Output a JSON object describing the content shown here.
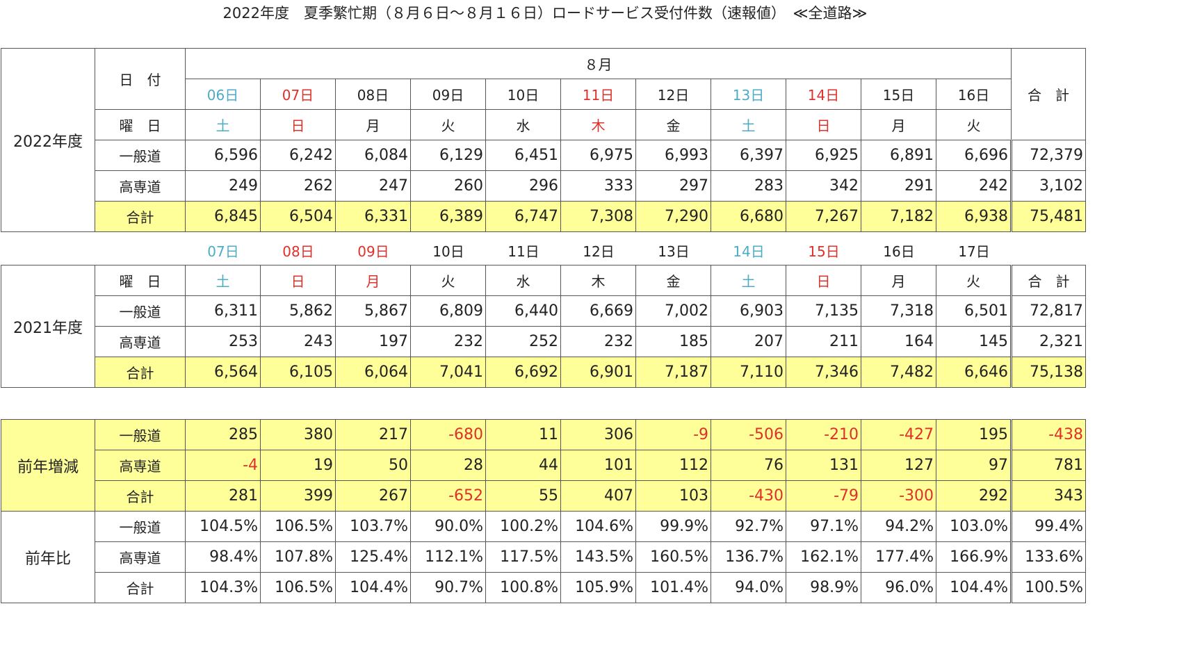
{
  "title": "2022年度　夏季繁忙期（８月６日～８月１６日）ロードサービス受付件数（速報値）　≪全道路≫",
  "labels": {
    "date": "日　付",
    "weekday": "曜　日",
    "general": "一般道",
    "express": "高専道",
    "total": "合計",
    "grand_total": "合　計",
    "month": "８月"
  },
  "y2022": {
    "year": "2022年度",
    "days": [
      {
        "date": "06日",
        "wd": "土",
        "color": "cyan"
      },
      {
        "date": "07日",
        "wd": "日",
        "color": "red"
      },
      {
        "date": "08日",
        "wd": "月",
        "color": ""
      },
      {
        "date": "09日",
        "wd": "火",
        "color": ""
      },
      {
        "date": "10日",
        "wd": "水",
        "color": ""
      },
      {
        "date": "11日",
        "wd": "木",
        "color": "red"
      },
      {
        "date": "12日",
        "wd": "金",
        "color": ""
      },
      {
        "date": "13日",
        "wd": "土",
        "color": "cyan"
      },
      {
        "date": "14日",
        "wd": "日",
        "color": "red"
      },
      {
        "date": "15日",
        "wd": "月",
        "color": ""
      },
      {
        "date": "16日",
        "wd": "火",
        "color": ""
      }
    ],
    "general": [
      "6,596",
      "6,242",
      "6,084",
      "6,129",
      "6,451",
      "6,975",
      "6,993",
      "6,397",
      "6,925",
      "6,891",
      "6,696",
      "72,379"
    ],
    "express": [
      "249",
      "262",
      "247",
      "260",
      "296",
      "333",
      "297",
      "283",
      "342",
      "291",
      "242",
      "3,102"
    ],
    "total": [
      "6,845",
      "6,504",
      "6,331",
      "6,389",
      "6,747",
      "7,308",
      "7,290",
      "6,680",
      "7,267",
      "7,182",
      "6,938",
      "75,481"
    ]
  },
  "y2021": {
    "year": "2021年度",
    "days": [
      {
        "date": "07日",
        "wd": "土",
        "color": "cyan",
        "wdcolor": "cyan"
      },
      {
        "date": "08日",
        "wd": "日",
        "color": "red",
        "wdcolor": "red"
      },
      {
        "date": "09日",
        "wd": "月",
        "color": "red",
        "wdcolor": "red"
      },
      {
        "date": "10日",
        "wd": "火",
        "color": "",
        "wdcolor": ""
      },
      {
        "date": "11日",
        "wd": "水",
        "color": "",
        "wdcolor": ""
      },
      {
        "date": "12日",
        "wd": "木",
        "color": "",
        "wdcolor": ""
      },
      {
        "date": "13日",
        "wd": "金",
        "color": "",
        "wdcolor": ""
      },
      {
        "date": "14日",
        "wd": "土",
        "color": "cyan",
        "wdcolor": "cyan"
      },
      {
        "date": "15日",
        "wd": "日",
        "color": "red",
        "wdcolor": "red"
      },
      {
        "date": "16日",
        "wd": "月",
        "color": "",
        "wdcolor": ""
      },
      {
        "date": "17日",
        "wd": "火",
        "color": "",
        "wdcolor": ""
      }
    ],
    "general": [
      "6,311",
      "5,862",
      "5,867",
      "6,809",
      "6,440",
      "6,669",
      "7,002",
      "6,903",
      "7,135",
      "7,318",
      "6,501",
      "72,817"
    ],
    "express": [
      "253",
      "243",
      "197",
      "232",
      "252",
      "232",
      "185",
      "207",
      "211",
      "164",
      "145",
      "2,321"
    ],
    "total": [
      "6,564",
      "6,105",
      "6,064",
      "7,041",
      "6,692",
      "6,901",
      "7,187",
      "7,110",
      "7,346",
      "7,482",
      "6,646",
      "75,138"
    ]
  },
  "diff": {
    "label": "前年増減",
    "general": [
      "285",
      "380",
      "217",
      "-680",
      "11",
      "306",
      "-9",
      "-506",
      "-210",
      "-427",
      "195",
      "-438"
    ],
    "express": [
      "-4",
      "19",
      "50",
      "28",
      "44",
      "101",
      "112",
      "76",
      "131",
      "127",
      "97",
      "781"
    ],
    "total": [
      "281",
      "399",
      "267",
      "-652",
      "55",
      "407",
      "103",
      "-430",
      "-79",
      "-300",
      "292",
      "343"
    ]
  },
  "ratio": {
    "label": "前年比",
    "general": [
      "104.5%",
      "106.5%",
      "103.7%",
      "90.0%",
      "100.2%",
      "104.6%",
      "99.9%",
      "92.7%",
      "97.1%",
      "94.2%",
      "103.0%",
      "99.4%"
    ],
    "express": [
      "98.4%",
      "107.8%",
      "125.4%",
      "112.1%",
      "117.5%",
      "143.5%",
      "160.5%",
      "136.7%",
      "162.1%",
      "177.4%",
      "166.9%",
      "133.6%"
    ],
    "total": [
      "104.3%",
      "106.5%",
      "104.4%",
      "90.7%",
      "100.8%",
      "105.9%",
      "101.4%",
      "94.0%",
      "98.9%",
      "96.0%",
      "104.4%",
      "100.5%"
    ]
  },
  "colors": {
    "yellow": "#ffff99",
    "cyan": "#4bacc6",
    "red": "#e0302b"
  }
}
